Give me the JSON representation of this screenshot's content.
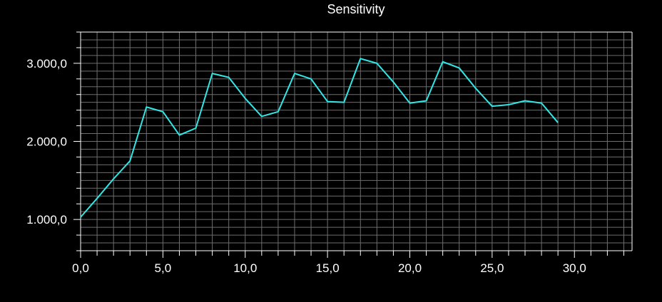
{
  "chart_data": {
    "type": "line",
    "title": "Sensitivity",
    "xlabel": "",
    "ylabel": "",
    "xlim": [
      0,
      33.5
    ],
    "ylim": [
      600,
      3400
    ],
    "x_ticks": [
      0,
      5,
      10,
      15,
      20,
      25,
      30
    ],
    "x_tick_labels": [
      "0,0",
      "5,0",
      "10,0",
      "15,0",
      "20,0",
      "25,0",
      "30,0"
    ],
    "y_ticks": [
      1000,
      2000,
      3000
    ],
    "y_tick_labels": [
      "1.000,0",
      "2.000,0",
      "3.000,0"
    ],
    "grid": true,
    "colors": {
      "background": "#000000",
      "grid": "#6e6e6e",
      "axis": "#ffffff",
      "series": "#33e6e6",
      "text": "#ffffff"
    },
    "series": [
      {
        "x": [
          0,
          1,
          2,
          3,
          4,
          5,
          6,
          7,
          8,
          9,
          10,
          11,
          12,
          13,
          14,
          15,
          16,
          17,
          18,
          19,
          20,
          21,
          22,
          23,
          24,
          25,
          26,
          27,
          28,
          29
        ],
        "values": [
          1030,
          1270,
          1520,
          1750,
          2440,
          2380,
          2080,
          2170,
          2870,
          2820,
          2550,
          2320,
          2380,
          2870,
          2800,
          2510,
          2500,
          3060,
          3000,
          2760,
          2490,
          2520,
          3020,
          2940,
          2680,
          2450,
          2470,
          2520,
          2490,
          2240
        ]
      }
    ]
  }
}
